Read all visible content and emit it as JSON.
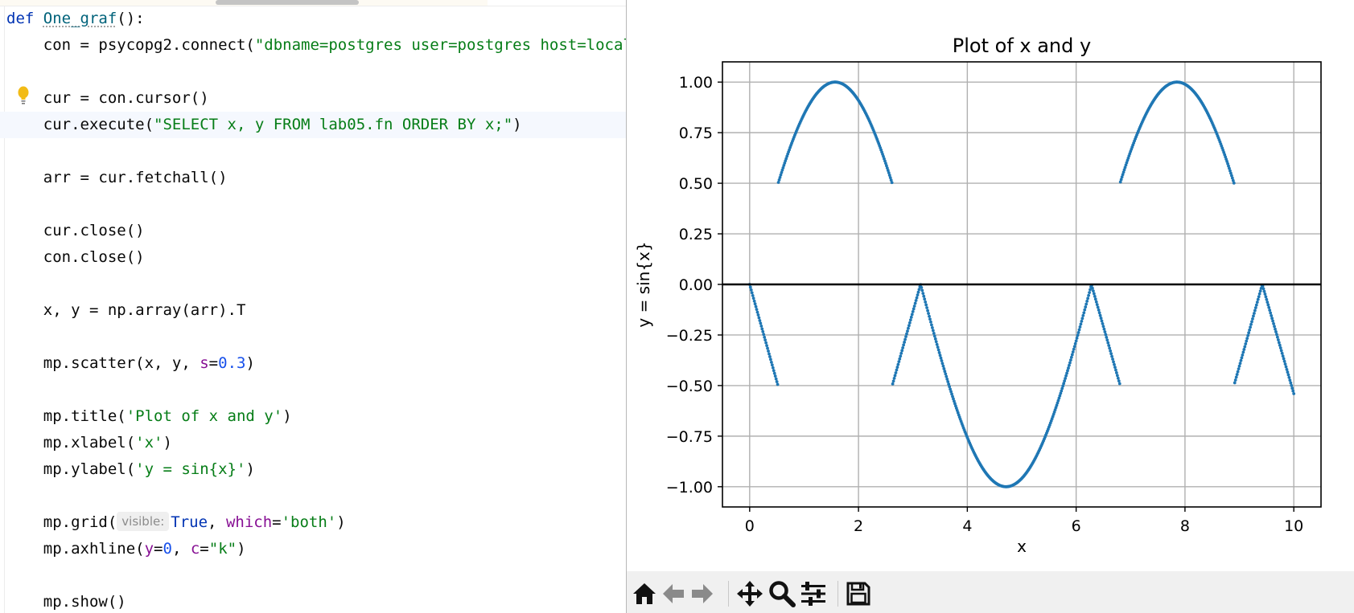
{
  "editor": {
    "lines": [
      {
        "text": [
          {
            "t": "def ",
            "c": "kw"
          },
          {
            "t": "One_graf",
            "c": "fn"
          },
          {
            "t": "():",
            "c": ""
          }
        ]
      },
      {
        "text": [
          {
            "t": "    con = psycopg2.connect(",
            "c": ""
          },
          {
            "t": "\"dbname=postgres user=postgres host=localhost\")",
            "c": "str"
          }
        ]
      },
      {
        "text": []
      },
      {
        "text": [
          {
            "t": "    cur = con.cursor()",
            "c": ""
          }
        ]
      },
      {
        "text": [
          {
            "t": "    cur.execute(",
            "c": ""
          },
          {
            "t": "\"SELECT x, y FROM lab05.fn ORDER BY x;\"",
            "c": "str"
          },
          {
            "t": ")",
            "c": ""
          }
        ],
        "current": true
      },
      {
        "text": []
      },
      {
        "text": [
          {
            "t": "    arr = cur.fetchall()",
            "c": ""
          }
        ]
      },
      {
        "text": []
      },
      {
        "text": [
          {
            "t": "    cur.close()",
            "c": ""
          }
        ]
      },
      {
        "text": [
          {
            "t": "    con.close()",
            "c": ""
          }
        ]
      },
      {
        "text": []
      },
      {
        "text": [
          {
            "t": "    x, y = np.array(arr).T",
            "c": ""
          }
        ]
      },
      {
        "text": []
      },
      {
        "text": [
          {
            "t": "    mp.scatter(x, y, ",
            "c": ""
          },
          {
            "t": "s",
            "c": "param"
          },
          {
            "t": "=",
            "c": ""
          },
          {
            "t": "0.3",
            "c": "num"
          },
          {
            "t": ")",
            "c": ""
          }
        ]
      },
      {
        "text": []
      },
      {
        "text": [
          {
            "t": "    mp.title(",
            "c": ""
          },
          {
            "t": "'Plot of x and y'",
            "c": "str"
          },
          {
            "t": ")",
            "c": ""
          }
        ]
      },
      {
        "text": [
          {
            "t": "    mp.xlabel(",
            "c": ""
          },
          {
            "t": "'x'",
            "c": "str"
          },
          {
            "t": ")",
            "c": ""
          }
        ]
      },
      {
        "text": [
          {
            "t": "    mp.ylabel(",
            "c": ""
          },
          {
            "t": "'y = sin{x}'",
            "c": "str"
          },
          {
            "t": ")",
            "c": ""
          }
        ]
      },
      {
        "text": []
      },
      {
        "text": [
          {
            "t": "    mp.grid(",
            "c": ""
          },
          {
            "t": "visible:",
            "c": "hint"
          },
          {
            "t": "True",
            "c": "kw"
          },
          {
            "t": ", ",
            "c": ""
          },
          {
            "t": "which",
            "c": "param"
          },
          {
            "t": "=",
            "c": ""
          },
          {
            "t": "'both'",
            "c": "str"
          },
          {
            "t": ")",
            "c": ""
          }
        ]
      },
      {
        "text": [
          {
            "t": "    mp.axhline(",
            "c": ""
          },
          {
            "t": "y",
            "c": "param"
          },
          {
            "t": "=",
            "c": ""
          },
          {
            "t": "0",
            "c": "num"
          },
          {
            "t": ", ",
            "c": ""
          },
          {
            "t": "c",
            "c": "param"
          },
          {
            "t": "=",
            "c": ""
          },
          {
            "t": "\"k\"",
            "c": "str"
          },
          {
            "t": ")",
            "c": ""
          }
        ]
      },
      {
        "text": []
      },
      {
        "text": [
          {
            "t": "    mp.show()",
            "c": ""
          }
        ]
      }
    ]
  },
  "figure": {
    "toolbar": [
      {
        "name": "home-icon",
        "tooltip": "Home"
      },
      {
        "name": "back-arrow-icon",
        "tooltip": "Back"
      },
      {
        "name": "forward-arrow-icon",
        "tooltip": "Forward"
      },
      {
        "name": "pan-icon",
        "tooltip": "Pan"
      },
      {
        "name": "zoom-icon",
        "tooltip": "Zoom"
      },
      {
        "name": "subplots-icon",
        "tooltip": "Configure subplots"
      },
      {
        "name": "save-icon",
        "tooltip": "Save"
      }
    ]
  },
  "chart_data": {
    "type": "scatter",
    "title": "Plot of x and y",
    "xlabel": "x",
    "ylabel": "y = sin{x}",
    "xlim": [
      -0.5,
      10.5
    ],
    "ylim": [
      -1.1,
      1.1
    ],
    "xticks": [
      "0",
      "2",
      "4",
      "6",
      "8",
      "10"
    ],
    "yticks": [
      "−1.00",
      "−0.75",
      "−0.50",
      "−0.25",
      "0.00",
      "0.25",
      "0.50",
      "0.75",
      "1.00"
    ],
    "grid": true,
    "axhline_y": 0,
    "axhline_color": "#000000",
    "marker_color": "#1f77b4",
    "x_range": [
      0,
      10
    ],
    "segments": [
      {
        "shape": "descending line",
        "x": [
          0.0,
          0.52
        ],
        "y": [
          0.0,
          -0.5
        ]
      },
      {
        "shape": "arch",
        "x": [
          0.52,
          2.62
        ],
        "y_ends": 0.5,
        "peak": [
          1.57,
          1.0
        ]
      },
      {
        "shape": "ascending line",
        "x": [
          2.62,
          3.14
        ],
        "y": [
          -0.5,
          0.0
        ]
      },
      {
        "shape": "valley",
        "x": [
          3.14,
          6.28
        ],
        "y_ends": 0.0,
        "trough": [
          4.71,
          -1.0
        ]
      },
      {
        "shape": "descending line",
        "x": [
          6.28,
          6.81
        ],
        "y": [
          0.0,
          -0.5
        ]
      },
      {
        "shape": "arch",
        "x": [
          6.81,
          8.9
        ],
        "y_ends": 0.5,
        "peak": [
          7.85,
          1.0
        ]
      },
      {
        "shape": "ascending line",
        "x": [
          8.9,
          9.42
        ],
        "y": [
          -0.5,
          0.0
        ]
      },
      {
        "shape": "descending line",
        "x": [
          9.42,
          10.0
        ],
        "y": [
          0.0,
          -0.54
        ]
      }
    ]
  }
}
